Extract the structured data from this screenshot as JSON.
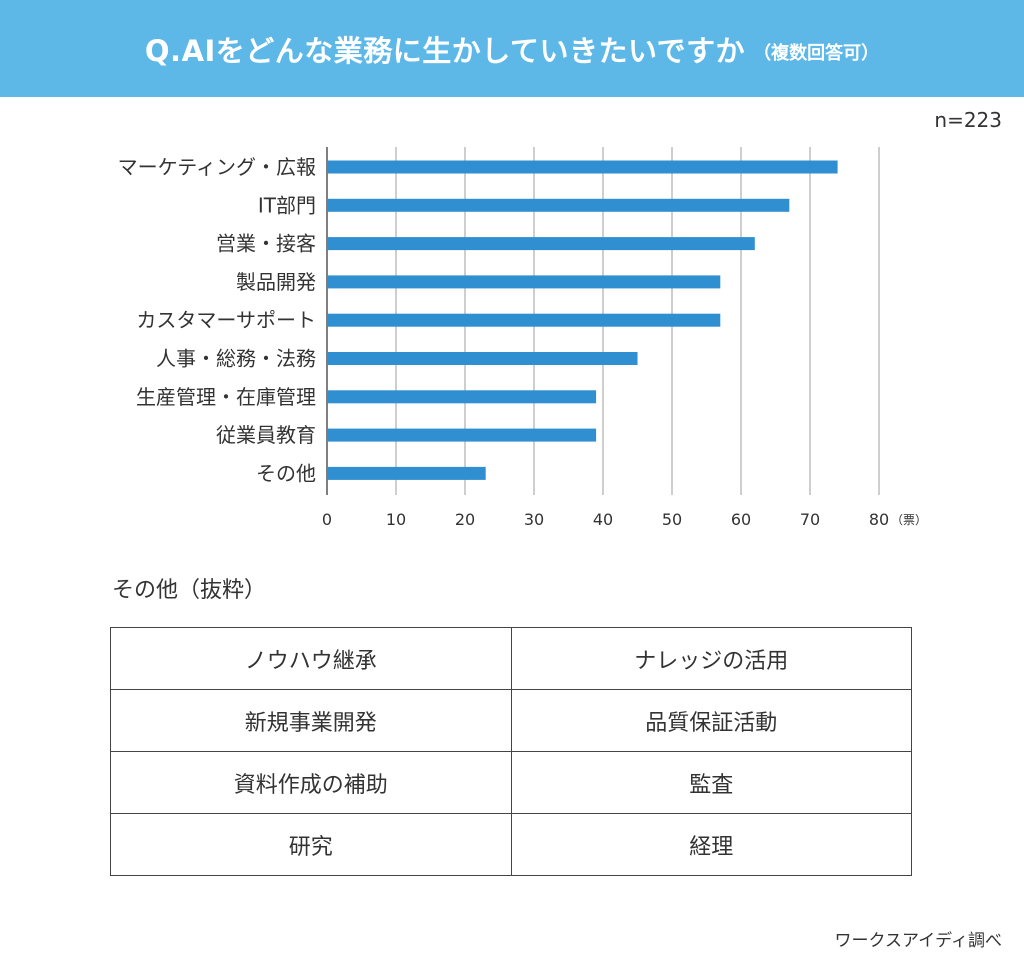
{
  "header": {
    "title": "Q.AIをどんな業務に生かしていきたいですか",
    "subtitle": "（複数回答可）"
  },
  "sample_size": "n=223",
  "chart_data": {
    "type": "bar",
    "orientation": "horizontal",
    "categories": [
      "マーケティング・広報",
      "IT部門",
      "営業・接客",
      "製品開発",
      "カスタマーサポート",
      "人事・総務・法務",
      "生産管理・在庫管理",
      "従業員教育",
      "その他"
    ],
    "values": [
      74,
      67,
      62,
      57,
      57,
      45,
      39,
      39,
      23
    ],
    "xlim": [
      0,
      80
    ],
    "xticks": [
      "0",
      "10",
      "20",
      "30",
      "40",
      "50",
      "60",
      "70",
      "80"
    ],
    "xunit": "（票）",
    "grid": true,
    "bar_color": "#2f8fd0"
  },
  "others": {
    "title": "その他（抜粋）",
    "rows": [
      [
        "ノウハウ継承",
        "ナレッジの活用"
      ],
      [
        "新規事業開発",
        "品質保証活動"
      ],
      [
        "資料作成の補助",
        "監査"
      ],
      [
        "研究",
        "経理"
      ]
    ]
  },
  "credit": "ワークスアイディ調べ"
}
